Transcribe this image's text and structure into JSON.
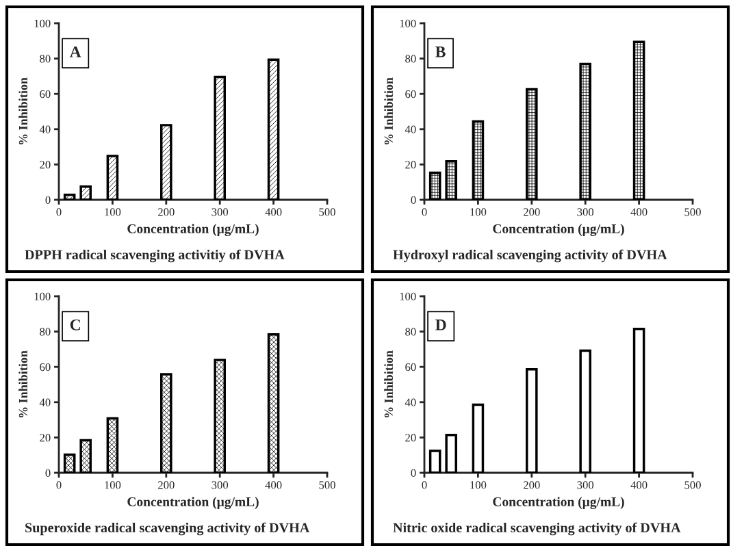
{
  "chart_data": [
    {
      "type": "bar",
      "title": "DPPH radical scavenging activitiy of DVHA",
      "xlabel": "Concentration (µg/mL)",
      "ylabel": "% Inhibition",
      "annotations": [
        "A"
      ],
      "x": [
        20,
        50,
        100,
        200,
        300,
        400
      ],
      "values": [
        2.8,
        7.5,
        24.8,
        42.3,
        69.6,
        79.4
      ],
      "color": "#000000",
      "xlim": [
        0,
        500
      ],
      "xticks": [
        0,
        100,
        200,
        300,
        400,
        500
      ],
      "ylim": [
        0,
        100
      ],
      "yticks": [
        0,
        20,
        40,
        60,
        80,
        100
      ],
      "grid": false,
      "legend": false
    },
    {
      "type": "bar",
      "title": "Hydroxyl radical scavenging activity of DVHA",
      "xlabel": "Concentration (µg/mL)",
      "ylabel": "% Inhibition",
      "annotations": [
        "B"
      ],
      "x": [
        20,
        50,
        100,
        200,
        300,
        400
      ],
      "values": [
        15.3,
        21.8,
        44.4,
        62.6,
        76.9,
        89.4
      ],
      "color": "#000000",
      "xlim": [
        0,
        500
      ],
      "xticks": [
        0,
        100,
        200,
        300,
        400,
        500
      ],
      "ylim": [
        0,
        100
      ],
      "yticks": [
        0,
        20,
        40,
        60,
        80,
        100
      ],
      "grid": false,
      "legend": false
    },
    {
      "type": "bar",
      "title": "Superoxide radical scavenging activity of DVHA",
      "xlabel": "Concentration (µg/mL)",
      "ylabel": "% Inhibition",
      "annotations": [
        "C"
      ],
      "x": [
        20,
        50,
        100,
        200,
        300,
        400
      ],
      "values": [
        10.3,
        18.4,
        30.8,
        55.8,
        63.9,
        78.4
      ],
      "color": "#000000",
      "xlim": [
        0,
        500
      ],
      "xticks": [
        0,
        100,
        200,
        300,
        400,
        500
      ],
      "ylim": [
        0,
        100
      ],
      "yticks": [
        0,
        20,
        40,
        60,
        80,
        100
      ],
      "grid": false,
      "legend": false
    },
    {
      "type": "bar",
      "title": "Nitric oxide radical scavenging activity of DVHA",
      "xlabel": "Concentration (µg/mL)",
      "ylabel": "% Inhibition",
      "annotations": [
        "D"
      ],
      "x": [
        20,
        50,
        100,
        200,
        300,
        400
      ],
      "values": [
        12.4,
        21.4,
        38.6,
        58.6,
        69.2,
        81.5
      ],
      "color": "#ffffff",
      "xlim": [
        0,
        500
      ],
      "xticks": [
        0,
        100,
        200,
        300,
        400,
        500
      ],
      "ylim": [
        0,
        100
      ],
      "yticks": [
        0,
        20,
        40,
        60,
        80,
        100
      ],
      "grid": false,
      "legend": false
    }
  ]
}
